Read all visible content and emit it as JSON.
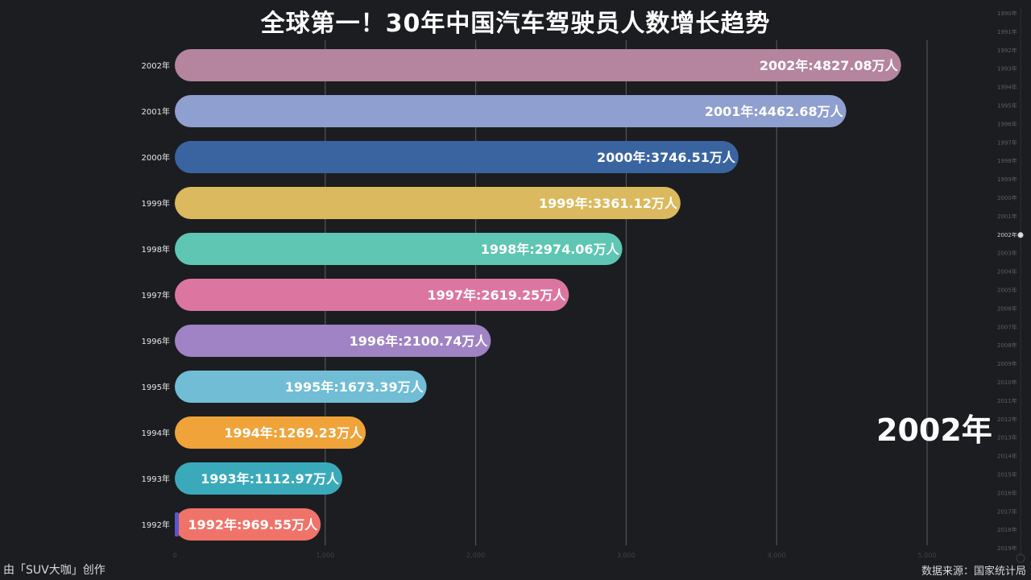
{
  "title": "全球第一！30年中国汽车驾驶员人数增长趋势",
  "current_year_label": "2002年",
  "credit": "由「SUV大咖」创作",
  "source": "数据来源：国家统计局",
  "colors": {
    "background": "#1c1d20",
    "gridline": "#5a5d62",
    "timeline_text": "#5c5f64",
    "timeline_active": "#cfcfcf"
  },
  "chart_data": {
    "type": "bar",
    "orientation": "horizontal",
    "unit": "万人",
    "categories": [
      "2002年",
      "2001年",
      "2000年",
      "1999年",
      "1998年",
      "1997年",
      "1996年",
      "1995年",
      "1994年",
      "1993年",
      "1992年"
    ],
    "values": [
      4827.08,
      4462.68,
      3746.51,
      3361.12,
      2974.06,
      2619.25,
      2100.74,
      1673.39,
      1269.23,
      1112.97,
      969.55
    ],
    "value_labels": [
      "2002年:4827.08万人",
      "2001年:4462.68万人",
      "2000年:3746.51万人",
      "1999年:3361.12万人",
      "1998年:2974.06万人",
      "1997年:2619.25万人",
      "1996年:2100.74万人",
      "1995年:1673.39万人",
      "1994年:1269.23万人",
      "1993年:1112.97万人",
      "1992年:969.55万人"
    ],
    "bar_colors": [
      "#b5849f",
      "#8f9fcf",
      "#3a64a0",
      "#dbb95e",
      "#5ec6b2",
      "#dc76a0",
      "#9f83c5",
      "#71bdd6",
      "#f0a339",
      "#3aaabb",
      "#f0736a"
    ],
    "xlim": [
      0,
      5000
    ],
    "xticks": [
      0,
      1000,
      2000,
      3000,
      4000,
      5000
    ],
    "xtick_labels": [
      "0",
      "1,000",
      "2,000",
      "3,000",
      "4,000",
      "5,000"
    ],
    "grid": true,
    "timeline": {
      "years": [
        "1990年",
        "1991年",
        "1992年",
        "1993年",
        "1994年",
        "1995年",
        "1996年",
        "1997年",
        "1998年",
        "1999年",
        "2000年",
        "2001年",
        "2002年",
        "2003年",
        "2004年",
        "2005年",
        "2006年",
        "2007年",
        "2008年",
        "2009年",
        "2010年",
        "2011年",
        "2012年",
        "2013年",
        "2014年",
        "2015年",
        "2016年",
        "2017年",
        "2018年",
        "2019年"
      ],
      "active": "2002年"
    }
  }
}
